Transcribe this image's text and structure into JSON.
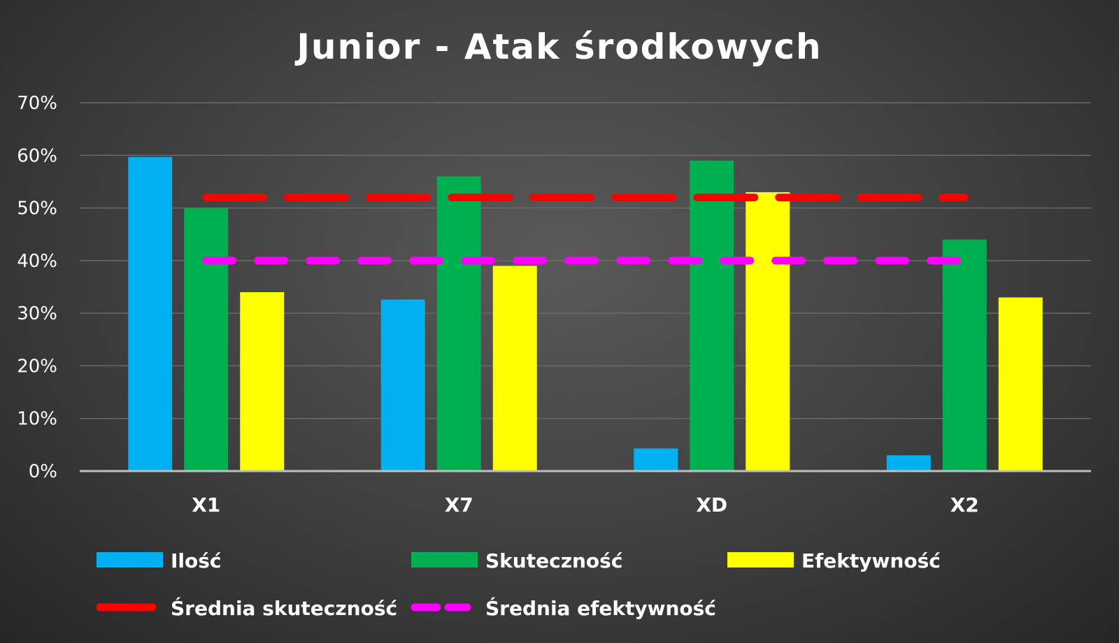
{
  "chart_data": {
    "type": "bar",
    "title": "Junior - Atak środkowych",
    "categories": [
      "X1",
      "X7",
      "XD",
      "X2"
    ],
    "y_unit": "%",
    "ylim": [
      0,
      70
    ],
    "yticks": [
      "0%",
      "10%",
      "20%",
      "30%",
      "40%",
      "50%",
      "60%",
      "70%"
    ],
    "grid": true,
    "legend_position": "bottom",
    "series": [
      {
        "name": "Ilość",
        "color": "#00b0f0",
        "values": [
          59.7,
          32.6,
          4.3,
          3.0
        ]
      },
      {
        "name": "Skuteczność",
        "color": "#00b050",
        "values": [
          50,
          56,
          59,
          44
        ]
      },
      {
        "name": "Efektywność",
        "color": "#ffff00",
        "values": [
          34,
          39,
          53,
          33
        ]
      }
    ],
    "reference_lines": [
      {
        "name": "Średnia skuteczność",
        "color": "#ff0000",
        "value": 52
      },
      {
        "name": "Średnia efektywność",
        "color": "#ff00ff",
        "value": 40
      }
    ]
  }
}
